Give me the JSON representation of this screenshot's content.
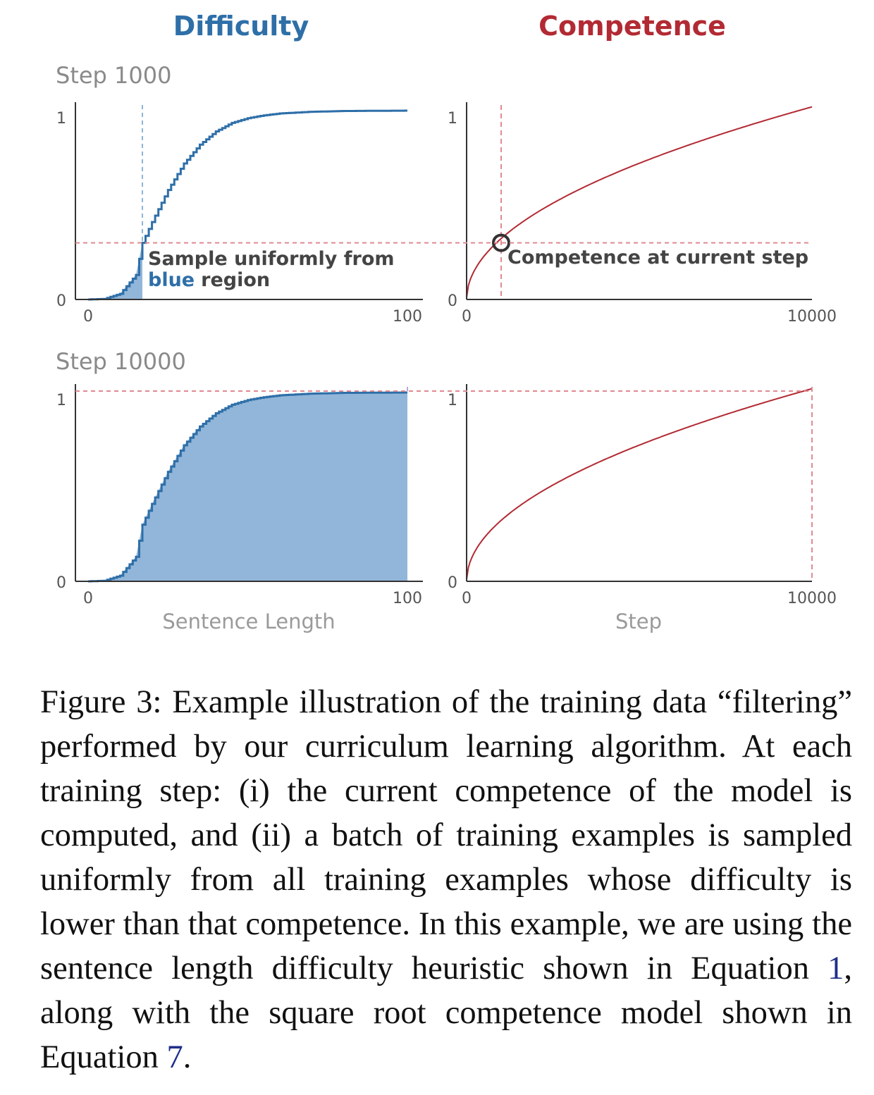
{
  "colors": {
    "difficulty": "#2e6fa8",
    "difficulty_fill": "#92b6d9",
    "competence": "#b22a33",
    "guide_red": "#e08a90",
    "guide_blue": "#8fb4d6",
    "guide_purple": "#b9a8d6"
  },
  "chart_data": [
    {
      "type": "area",
      "panel": "difficulty-step-1000",
      "column_title": "Difficulty",
      "row_label": "Step 1000",
      "xlabel": "",
      "xlim": [
        0,
        100
      ],
      "ylim": [
        0,
        1
      ],
      "x_ticks": [
        "0",
        "100"
      ],
      "y_ticks": [
        "0",
        "1"
      ],
      "series": [
        {
          "curve": "cdf-step",
          "x": [
            0,
            5,
            10,
            15,
            17,
            20,
            25,
            30,
            35,
            40,
            45,
            50,
            55,
            60,
            70,
            80,
            90,
            100
          ],
          "y": [
            0,
            0.003,
            0.03,
            0.13,
            0.3,
            0.41,
            0.58,
            0.72,
            0.82,
            0.89,
            0.935,
            0.96,
            0.975,
            0.985,
            0.994,
            0.998,
            0.999,
            1
          ]
        }
      ],
      "shaded_until_x": 17,
      "competence_level": 0.3,
      "annotation": {
        "line1": "Sample uniformly from",
        "highlight": "blue",
        "rest": "region"
      }
    },
    {
      "type": "line",
      "panel": "competence-step-1000",
      "column_title": "Competence",
      "xlabel": "",
      "xlim": [
        0,
        10000
      ],
      "ylim": [
        0,
        1
      ],
      "x_ticks": [
        "0",
        "10000"
      ],
      "y_ticks": [
        "0",
        "1"
      ],
      "current_step": 1000,
      "competence_level": 0.3,
      "annotation": "Competence at current step"
    },
    {
      "type": "area",
      "panel": "difficulty-step-10000",
      "row_label": "Step 10000",
      "xlabel": "Sentence Length",
      "xlim": [
        0,
        100
      ],
      "ylim": [
        0,
        1
      ],
      "x_ticks": [
        "0",
        "100"
      ],
      "y_ticks": [
        "0",
        "1"
      ],
      "series": [
        {
          "curve": "cdf-step",
          "x": [
            0,
            5,
            10,
            15,
            17,
            20,
            25,
            30,
            35,
            40,
            45,
            50,
            55,
            60,
            70,
            80,
            90,
            100
          ],
          "y": [
            0,
            0.003,
            0.03,
            0.13,
            0.3,
            0.41,
            0.58,
            0.72,
            0.82,
            0.89,
            0.935,
            0.96,
            0.975,
            0.985,
            0.994,
            0.998,
            0.999,
            1
          ]
        }
      ],
      "shaded_until_x": 100,
      "competence_level": 1
    },
    {
      "type": "line",
      "panel": "competence-step-10000",
      "xlabel": "Step",
      "xlim": [
        0,
        10000
      ],
      "ylim": [
        0,
        1
      ],
      "x_ticks": [
        "0",
        "10000"
      ],
      "y_ticks": [
        "0",
        "1"
      ],
      "current_step": 10000,
      "competence_level": 1
    }
  ],
  "caption": {
    "label": "Figure 3:",
    "text_1": "Example illustration of the training data “filtering” performed by our curriculum learning algorithm. At each training step: (i) the current competence of the model is computed, and (ii) a batch of training examples is sampled uniformly from all training examples whose difficulty is lower than that competence. In this example, we are using the sentence length difficulty heuristic shown in Equation",
    "ref_1": "1",
    "text_2": ", along with the square root competence model shown in Equation",
    "ref_2": "7",
    "text_3": "."
  }
}
